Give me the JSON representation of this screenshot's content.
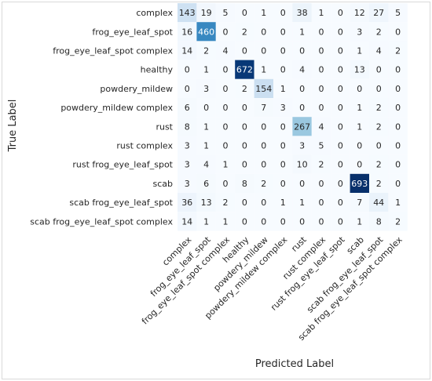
{
  "chart_data": {
    "type": "heatmap",
    "title": "",
    "xlabel": "Predicted Label",
    "ylabel": "True Label",
    "colormap": "Blues",
    "categories": [
      "complex",
      "frog_eye_leaf_spot",
      "frog_eye_leaf_spot complex",
      "healthy",
      "powdery_mildew",
      "powdery_mildew complex",
      "rust",
      "rust complex",
      "rust frog_eye_leaf_spot",
      "scab",
      "scab frog_eye_leaf_spot",
      "scab frog_eye_leaf_spot complex"
    ],
    "values": [
      [
        143,
        19,
        5,
        0,
        1,
        0,
        38,
        1,
        0,
        12,
        27,
        5
      ],
      [
        16,
        460,
        0,
        2,
        0,
        0,
        1,
        0,
        0,
        3,
        2,
        0
      ],
      [
        14,
        2,
        4,
        0,
        0,
        0,
        0,
        0,
        0,
        1,
        4,
        2
      ],
      [
        0,
        1,
        0,
        672,
        1,
        0,
        4,
        0,
        0,
        13,
        0,
        0
      ],
      [
        0,
        3,
        0,
        2,
        154,
        1,
        0,
        0,
        0,
        0,
        0,
        0
      ],
      [
        6,
        0,
        0,
        0,
        7,
        3,
        0,
        0,
        0,
        1,
        2,
        0
      ],
      [
        8,
        1,
        0,
        0,
        0,
        0,
        267,
        4,
        0,
        1,
        2,
        0
      ],
      [
        3,
        1,
        0,
        0,
        0,
        0,
        3,
        5,
        0,
        0,
        0,
        0
      ],
      [
        3,
        4,
        1,
        0,
        0,
        0,
        10,
        2,
        0,
        0,
        2,
        0
      ],
      [
        3,
        6,
        0,
        8,
        2,
        0,
        0,
        0,
        0,
        693,
        2,
        0
      ],
      [
        36,
        13,
        2,
        0,
        0,
        1,
        1,
        0,
        0,
        7,
        44,
        1
      ],
      [
        14,
        1,
        1,
        0,
        0,
        0,
        0,
        0,
        0,
        1,
        8,
        2
      ]
    ],
    "grid": false,
    "legend": "none"
  }
}
